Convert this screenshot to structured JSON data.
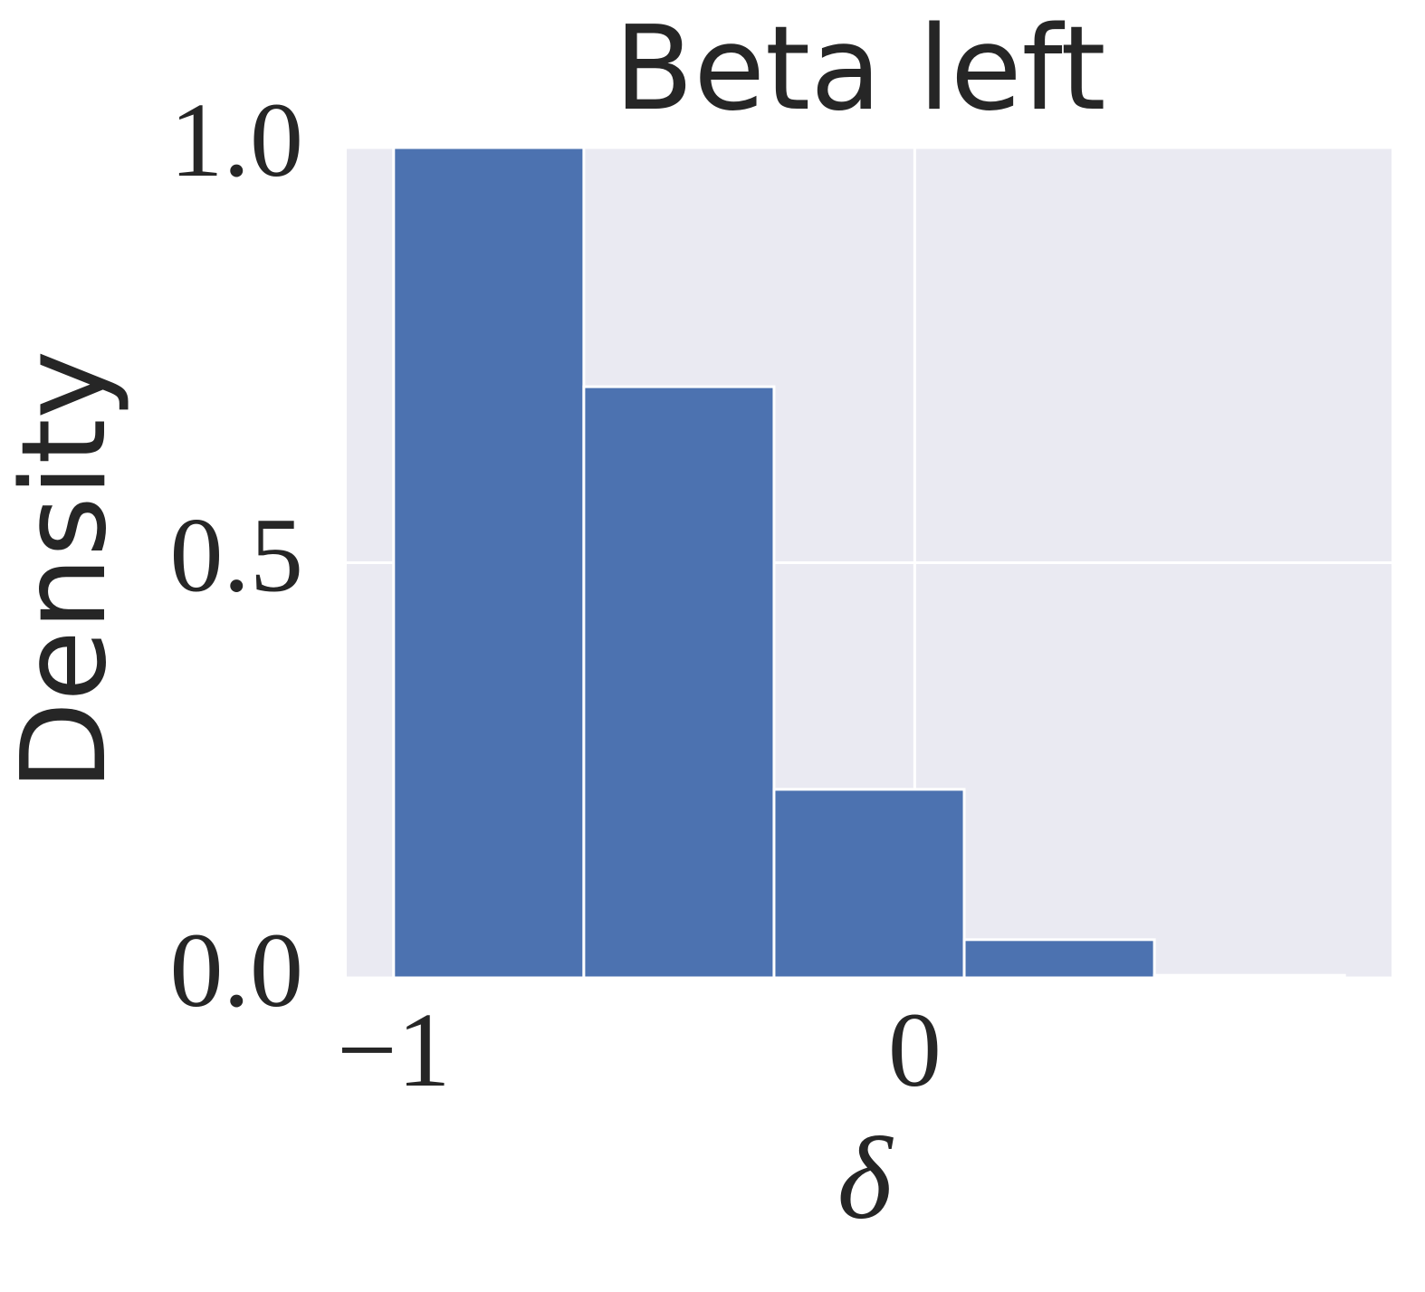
{
  "chart_data": {
    "type": "histogram",
    "title": "Beta left",
    "xlabel": "δ",
    "ylabel": "Density",
    "bins": [
      -1,
      -0.635,
      -0.27,
      0.095,
      0.46,
      0.825
    ],
    "values": [
      1.0,
      0.712,
      0.227,
      0.046,
      0.003
    ],
    "color": "#4c72b0",
    "background": "#eaeaf2",
    "grid": true,
    "xlim": [
      -1.09,
      0.915
    ],
    "xticks": [
      {
        "value": -1,
        "label": "−1"
      },
      0
    ],
    "ylim": [
      0,
      1.0
    ],
    "yticks": [
      {
        "value": 0,
        "label": "0.0"
      },
      0.5,
      {
        "value": 1,
        "label": "1.0"
      }
    ]
  }
}
